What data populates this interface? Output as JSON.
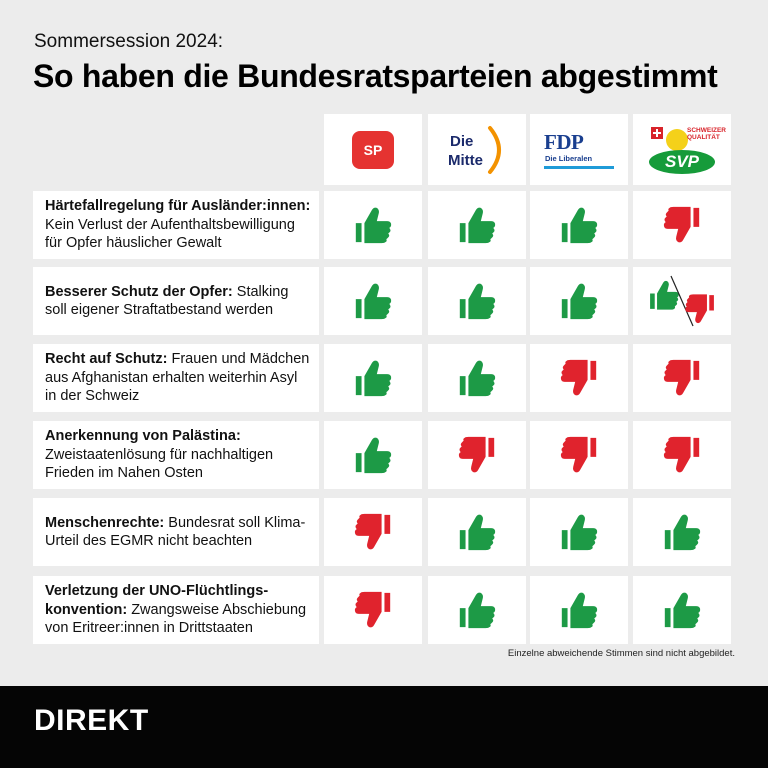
{
  "header": {
    "kicker": "Sommersession 2024:",
    "title": "So haben die Bundesratsparteien abgestimmt"
  },
  "parties": [
    {
      "name": "SP",
      "logo": "sp-logo",
      "color": "#e53331"
    },
    {
      "name": "Die Mitte",
      "line1": "Die",
      "line2": "Mitte",
      "logo": "mitte-logo",
      "color": "#1b2a6b"
    },
    {
      "name": "FDP",
      "sub": "Die Liberalen",
      "logo": "fdp-logo",
      "color": "#1a3f8f"
    },
    {
      "name": "SVP",
      "sub": "SCHWEIZER QUALITÄT",
      "logo": "svp-logo",
      "color": "#169b3a"
    }
  ],
  "vote_colors": {
    "yes": "#1d9a46",
    "no": "#e0232d"
  },
  "rows": [
    {
      "title": "Härtefallregelung für Ausländer:innen:",
      "text": "Kein Verlust der Aufenthaltsbewilligung für Opfer häuslicher Gewalt",
      "votes": [
        "yes",
        "yes",
        "yes",
        "no"
      ]
    },
    {
      "title": "Besserer Schutz der Opfer:",
      "text": "Stalking soll eigener Straftatbestand werden",
      "votes": [
        "yes",
        "yes",
        "yes",
        "split"
      ]
    },
    {
      "title": "Recht auf Schutz:",
      "text": "Frauen und Mädchen aus Afghanistan erhalten weiterhin Asyl in der Schweiz",
      "votes": [
        "yes",
        "yes",
        "no",
        "no"
      ]
    },
    {
      "title": "Anerkennung von Palästina:",
      "text": "Zweistaatenlösung für nachhaltigen Frieden im Nahen Osten",
      "votes": [
        "yes",
        "no",
        "no",
        "no"
      ]
    },
    {
      "title": "Menschenrechte:",
      "text": "Bundesrat soll Klima-Urteil des EGMR nicht beachten",
      "votes": [
        "no",
        "yes",
        "yes",
        "yes"
      ]
    },
    {
      "title": "Verletzung der UNO-Flüchtlings-konvention:",
      "text": "Zwangsweise Abschiebung von Eritreer:innen in Drittstaaten",
      "votes": [
        "no",
        "yes",
        "yes",
        "yes"
      ]
    }
  ],
  "footnote": "Einzelne abweichende Stimmen sind nicht abgebildet.",
  "footer": {
    "brand": "DIREKT"
  }
}
